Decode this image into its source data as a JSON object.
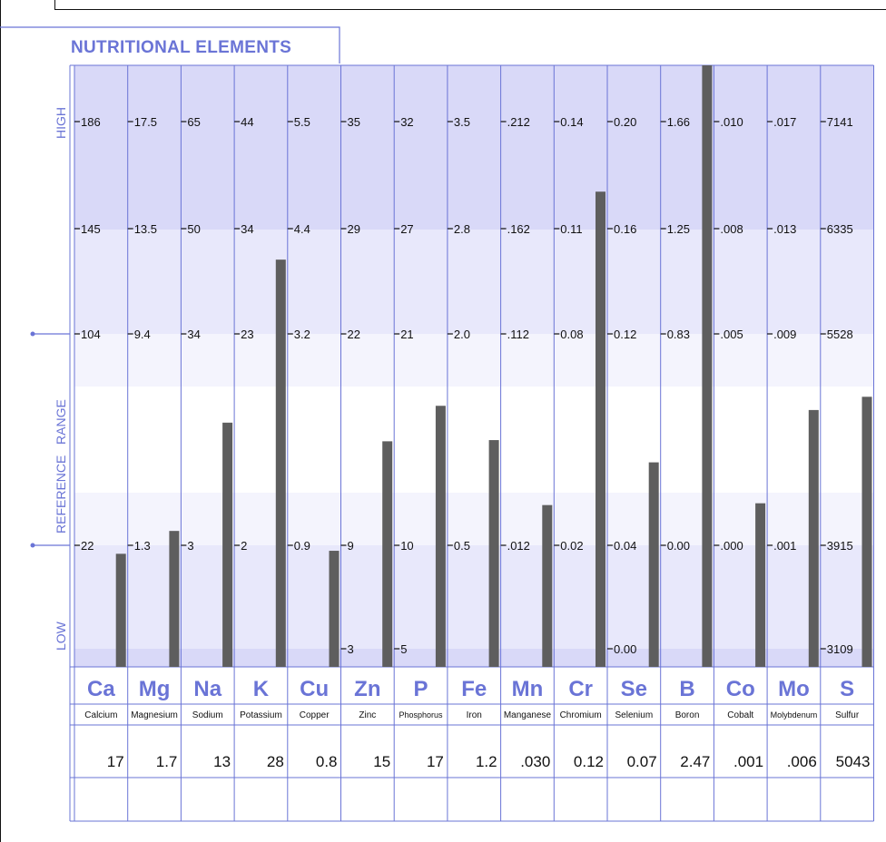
{
  "chart_data": {
    "type": "bar",
    "title": "NUTRITIONAL  ELEMENTS",
    "range_labels": {
      "high": "HIGH",
      "reference": "REFERENCE   RANGE",
      "low": "LOW"
    },
    "ylim_normalized": [
      0,
      1
    ],
    "elements": [
      {
        "symbol": "Ca",
        "name": "Calcium",
        "result": "17",
        "value": 0.188,
        "ticks": [
          "186",
          "145",
          "104",
          "22"
        ]
      },
      {
        "symbol": "Mg",
        "name": "Magnesium",
        "result": "1.7",
        "value": 0.226,
        "ticks": [
          "17.5",
          "13.5",
          "9.4",
          "1.3"
        ]
      },
      {
        "symbol": "Na",
        "name": "Sodium",
        "result": "13",
        "value": 0.406,
        "ticks": [
          "65",
          "50",
          "34",
          "3"
        ]
      },
      {
        "symbol": "K",
        "name": "Potassium",
        "result": "28",
        "value": 0.677,
        "ticks": [
          "44",
          "34",
          "23",
          "2"
        ]
      },
      {
        "symbol": "Cu",
        "name": "Copper",
        "result": "0.8",
        "value": 0.193,
        "ticks": [
          "5.5",
          "4.4",
          "3.2",
          "0.9"
        ]
      },
      {
        "symbol": "Zn",
        "name": "Zinc",
        "result": "15",
        "value": 0.375,
        "ticks": [
          "35",
          "29",
          "22",
          "9"
        ],
        "low_tick": "3"
      },
      {
        "symbol": "P",
        "name": "Phosphorus",
        "result": "17",
        "value": 0.434,
        "ticks": [
          "32",
          "27",
          "21",
          "10"
        ],
        "low_tick": "5"
      },
      {
        "symbol": "Fe",
        "name": "Iron",
        "result": "1.2",
        "value": 0.377,
        "ticks": [
          "3.5",
          "2.8",
          "2.0",
          "0.5"
        ]
      },
      {
        "symbol": "Mn",
        "name": "Manganese",
        "result": ".030",
        "value": 0.269,
        "ticks": [
          ".212",
          ".162",
          ".112",
          ".012"
        ]
      },
      {
        "symbol": "Cr",
        "name": "Chromium",
        "result": "0.12",
        "value": 0.79,
        "ticks": [
          "0.14",
          "0.11",
          "0.08",
          "0.02"
        ]
      },
      {
        "symbol": "Se",
        "name": "Selenium",
        "result": "0.07",
        "value": 0.34,
        "ticks": [
          "0.20",
          "0.16",
          "0.12",
          "0.04"
        ],
        "low_tick": "0.00"
      },
      {
        "symbol": "B",
        "name": "Boron",
        "result": "2.47",
        "value": 1.0,
        "ticks": [
          "1.66",
          "1.25",
          "0.83",
          "0.00"
        ]
      },
      {
        "symbol": "Co",
        "name": "Cobalt",
        "result": ".001",
        "value": 0.272,
        "ticks": [
          ".010",
          ".008",
          ".005",
          ".000"
        ]
      },
      {
        "symbol": "Mo",
        "name": "Molybdenum",
        "result": ".006",
        "value": 0.427,
        "ticks": [
          ".017",
          ".013",
          ".009",
          ".001"
        ]
      },
      {
        "symbol": "S",
        "name": "Sulfur",
        "result": "5043",
        "value": 0.449,
        "ticks": [
          "7141",
          "6335",
          "5528",
          "3915"
        ],
        "low_tick": "3109"
      }
    ]
  },
  "colors": {
    "accent": "#6a74d6",
    "band_high": "#d9d9f8",
    "band_mid": "#e8e8fb",
    "band_low": "#f4f4fd",
    "bar": "#5e5e5e",
    "title": "#6a74d6"
  }
}
